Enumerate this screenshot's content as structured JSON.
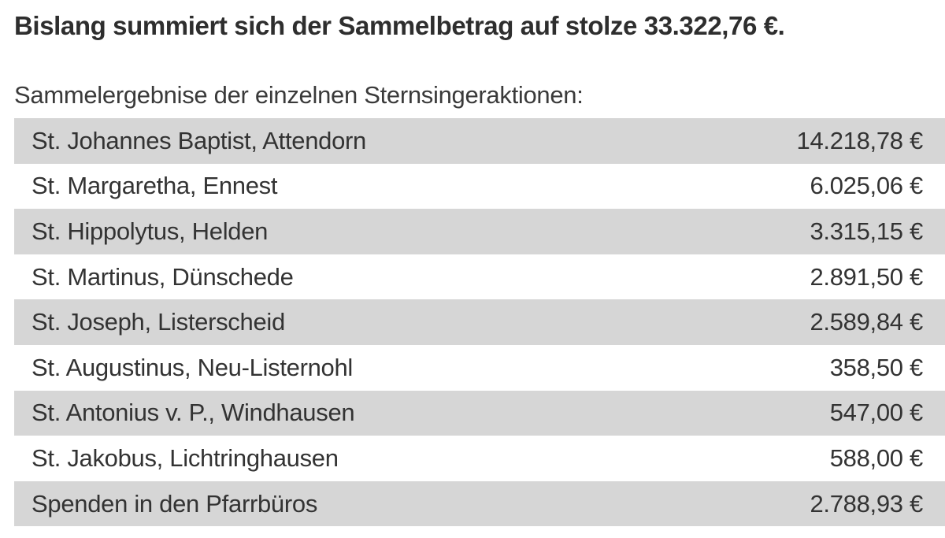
{
  "headline": "Bislang summiert sich der Sammelbetrag auf stolze 33.322,76 €.",
  "table_intro": "Sammelergebnise der einzelnen Sternsingeraktionen:",
  "rows": [
    {
      "parish": "St. Johannes Baptist, Attendorn",
      "amount": "14.218,78 €"
    },
    {
      "parish": "St. Margaretha, Ennest",
      "amount": "6.025,06 €"
    },
    {
      "parish": "St. Hippolytus, Helden",
      "amount": "3.315,15 €"
    },
    {
      "parish": "St. Martinus, Dünschede",
      "amount": "2.891,50 €"
    },
    {
      "parish": "St. Joseph, Listerscheid",
      "amount": "2.589,84 €"
    },
    {
      "parish": "St. Augustinus, Neu-Listernohl",
      "amount": "358,50 €"
    },
    {
      "parish": "St. Antonius v. P., Windhausen",
      "amount": "547,00 €"
    },
    {
      "parish": "St. Jakobus, Lichtringhausen",
      "amount": "588,00 €"
    },
    {
      "parish": "Spenden in den Pfarrbüros",
      "amount": "2.788,93 €"
    }
  ]
}
